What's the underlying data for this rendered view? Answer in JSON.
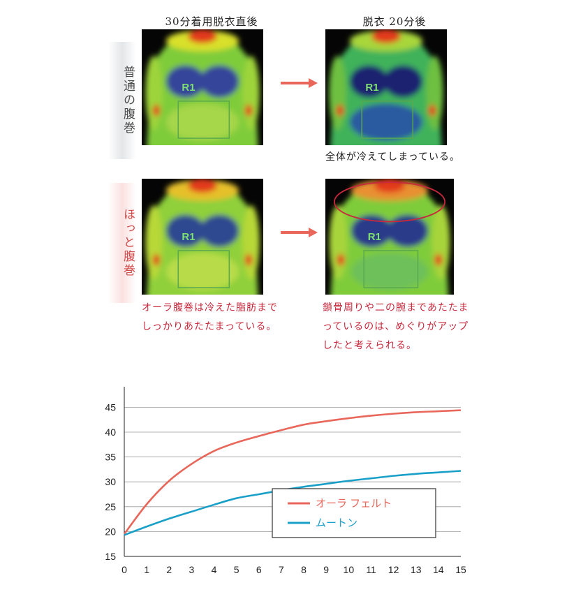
{
  "headers": {
    "before": "30分着用脱衣直後",
    "after": "脱衣 20分後"
  },
  "rows": [
    {
      "label": "普通の腹巻",
      "caption_after": "全体が冷えてしまっている。",
      "region_label": "R1"
    },
    {
      "label": "ほっと腹巻",
      "caption_before": "オーラ腹巻は冷えた脂肪までしっかりあたたまっている。",
      "caption_after": "鎖骨周りや二の腕まであたたまっているのは、めぐりがアップしたと考えられる。",
      "region_label": "R1"
    }
  ],
  "colors": {
    "series_aura": "#e8675a",
    "series_mouton": "#1aa0c8",
    "arrow": "#e8675a",
    "caption_red": "#c8283c",
    "highlight_ellipse": "#c8283c"
  },
  "chart_data": {
    "type": "line",
    "x": [
      0,
      1,
      2,
      3,
      4,
      5,
      6,
      7,
      8,
      9,
      10,
      11,
      12,
      13,
      14,
      15
    ],
    "series": [
      {
        "name": "オーラ フェルト",
        "values": [
          19.5,
          25.5,
          30.2,
          33.6,
          36.2,
          37.9,
          39.2,
          40.4,
          41.5,
          42.2,
          42.8,
          43.3,
          43.7,
          44.0,
          44.2,
          44.4
        ]
      },
      {
        "name": "ムートン",
        "values": [
          19.3,
          21.0,
          22.6,
          24.0,
          25.4,
          26.7,
          27.5,
          28.3,
          29.0,
          29.6,
          30.2,
          30.7,
          31.2,
          31.6,
          31.9,
          32.2
        ]
      }
    ],
    "xticks": [
      "0",
      "1",
      "2",
      "3",
      "4",
      "5",
      "6",
      "7",
      "8",
      "9",
      "10",
      "11",
      "12",
      "13",
      "14",
      "15"
    ],
    "yticks": [
      "15",
      "20",
      "25",
      "30",
      "35",
      "40",
      "45"
    ],
    "xlim": [
      0,
      15
    ],
    "ylim": [
      15,
      48
    ],
    "grid": "horizontal",
    "legend": "center-right",
    "title": "",
    "xlabel": "",
    "ylabel": ""
  }
}
